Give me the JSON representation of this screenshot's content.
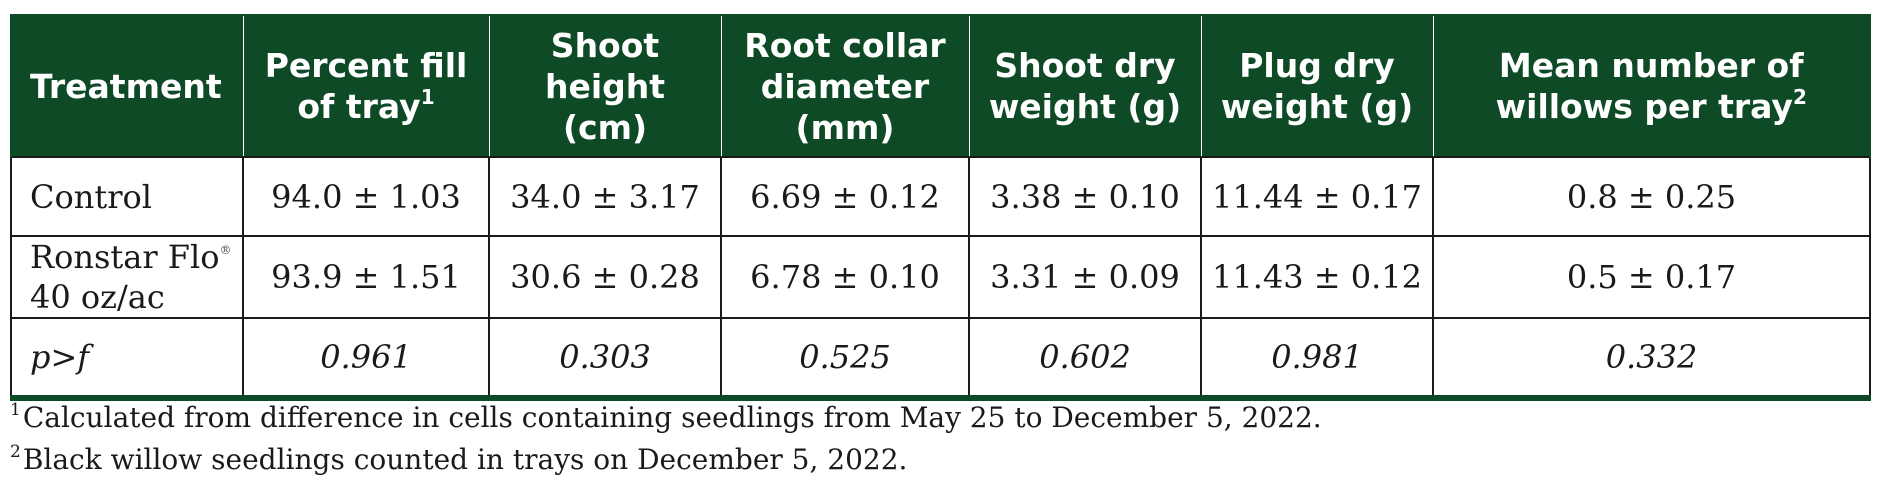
{
  "table": {
    "header_bg_color": "#0f4a26",
    "headers": [
      {
        "lines": [
          "Treatment"
        ],
        "sup": ""
      },
      {
        "lines": [
          "Percent fill",
          "of tray"
        ],
        "sup": "1"
      },
      {
        "lines": [
          "Shoot",
          "height",
          "(cm)"
        ],
        "sup": ""
      },
      {
        "lines": [
          "Root collar",
          "diameter",
          "(mm)"
        ],
        "sup": ""
      },
      {
        "lines": [
          "Shoot dry",
          "weight (g)"
        ],
        "sup": ""
      },
      {
        "lines": [
          "Plug dry",
          "weight (g)"
        ],
        "sup": ""
      },
      {
        "lines": [
          "Mean number of",
          "willows per tray"
        ],
        "sup": "2"
      }
    ],
    "rows": [
      {
        "treatment_lines": [
          "Control"
        ],
        "treatment_mark": "",
        "values": [
          "94.0 ± 1.03",
          "34.0 ± 3.17",
          "6.69 ± 0.12",
          "3.38 ± 0.10",
          "11.44 ± 0.17",
          "0.8 ± 0.25"
        ]
      },
      {
        "treatment_lines": [
          "Ronstar Flo",
          "40 oz/ac"
        ],
        "treatment_mark": "®",
        "values": [
          "93.9 ± 1.51",
          "30.6 ± 0.28",
          "6.78 ± 0.10",
          "3.31 ± 0.09",
          "11.43 ± 0.12",
          "0.5 ± 0.17"
        ]
      },
      {
        "treatment_lines": [
          "p>f"
        ],
        "treatment_mark": "",
        "values": [
          "0.961",
          "0.303",
          "0.525",
          "0.602",
          "0.981",
          "0.332"
        ]
      }
    ]
  },
  "footnotes": [
    {
      "sup": "1",
      "text": "Calculated from difference in cells containing seedlings from May 25 to December 5, 2022."
    },
    {
      "sup": "2",
      "text": "Black willow seedlings counted in trays on December 5, 2022."
    }
  ]
}
